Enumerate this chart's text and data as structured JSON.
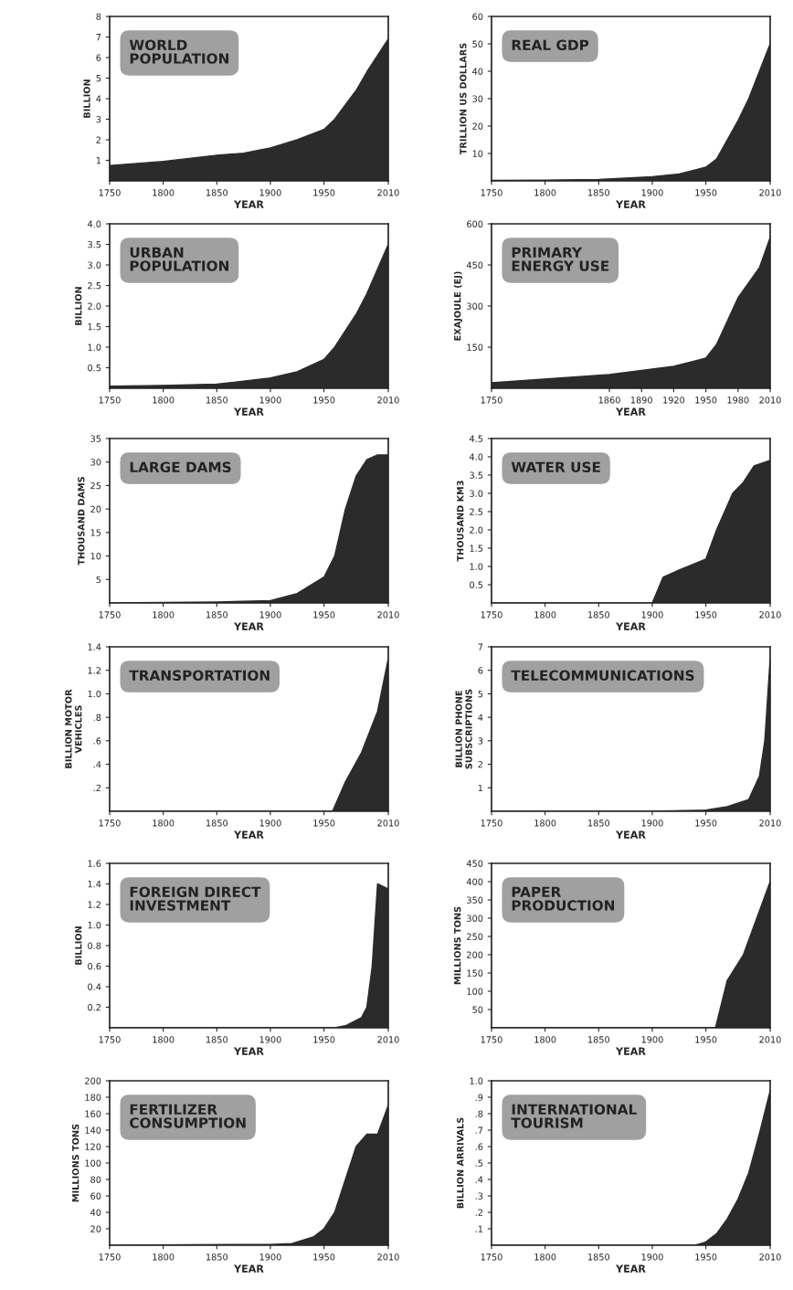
{
  "chart_data": [
    {
      "type": "area",
      "title": "WORLD\nPOPULATION",
      "xlabel": "YEAR",
      "ylabel": "BILLION",
      "x": [
        1750,
        1800,
        1850,
        1875,
        1900,
        1925,
        1950,
        1960,
        1970,
        1980,
        1990,
        2000,
        2010
      ],
      "series": [
        {
          "color": "#2b2b2b",
          "values": [
            0.75,
            0.95,
            1.25,
            1.35,
            1.6,
            2.0,
            2.5,
            3.0,
            3.7,
            4.4,
            5.3,
            6.1,
            6.9
          ]
        }
      ],
      "xlim": [
        1750,
        2010
      ],
      "xticks": [
        1750,
        1800,
        1850,
        1900,
        1950,
        2010
      ],
      "ylim": [
        0,
        8
      ],
      "yticks": [
        1,
        2,
        3,
        4,
        5,
        6,
        7,
        8
      ],
      "grid": false
    },
    {
      "type": "area",
      "title": "REAL GDP",
      "xlabel": "YEAR",
      "ylabel": "TRILLION US DOLLARS",
      "x": [
        1750,
        1800,
        1850,
        1900,
        1925,
        1950,
        1960,
        1970,
        1980,
        1990,
        2000,
        2010
      ],
      "series": [
        {
          "color": "#2b2b2b",
          "values": [
            0.2,
            0.3,
            0.5,
            1.5,
            2.5,
            5,
            8,
            15,
            22,
            30,
            40,
            50
          ]
        }
      ],
      "xlim": [
        1750,
        2010
      ],
      "xticks": [
        1750,
        1800,
        1850,
        1900,
        1950,
        2010
      ],
      "ylim": [
        0,
        60
      ],
      "yticks": [
        10,
        20,
        30,
        40,
        50,
        60
      ],
      "grid": false
    },
    {
      "type": "area",
      "title": "URBAN\nPOPULATION",
      "xlabel": "YEAR",
      "ylabel": "BILLION",
      "x": [
        1750,
        1800,
        1850,
        1900,
        1925,
        1950,
        1960,
        1970,
        1980,
        1990,
        2000,
        2010
      ],
      "series": [
        {
          "color": "#2b2b2b",
          "values": [
            0.05,
            0.07,
            0.1,
            0.25,
            0.4,
            0.7,
            1.0,
            1.4,
            1.8,
            2.3,
            2.9,
            3.5
          ]
        }
      ],
      "xlim": [
        1750,
        2010
      ],
      "xticks": [
        1750,
        1800,
        1850,
        1900,
        1950,
        2010
      ],
      "ylim": [
        0,
        4
      ],
      "yticks": [
        {
          "value": 0.5,
          "label": "0.5"
        },
        {
          "value": 1,
          "label": "1.0"
        },
        {
          "value": 1.5,
          "label": "1.5"
        },
        {
          "value": 2,
          "label": "2.0"
        },
        {
          "value": 2.5,
          "label": "2.5"
        },
        {
          "value": 3,
          "label": "3.0"
        },
        {
          "value": 3.5,
          "label": "3.5"
        },
        {
          "value": 4,
          "label": "4.0"
        }
      ],
      "grid": false
    },
    {
      "type": "area",
      "title": "PRIMARY\nENERGY USE",
      "xlabel": "YEAR",
      "ylabel": "EXAJOULE (EJ)",
      "x": [
        1750,
        1860,
        1920,
        1950,
        1960,
        1980,
        2000,
        2010
      ],
      "series": [
        {
          "color": "#2b2b2b",
          "values": [
            20,
            50,
            80,
            110,
            160,
            330,
            440,
            550
          ]
        }
      ],
      "xlim": [
        1750,
        2010
      ],
      "xticks": [
        1750,
        1860,
        1890,
        1920,
        1950,
        1980,
        2010
      ],
      "ylim": [
        0,
        600
      ],
      "yticks": [
        150,
        300,
        450,
        600
      ],
      "grid": false
    },
    {
      "type": "area",
      "title": "LARGE DAMS",
      "xlabel": "YEAR",
      "ylabel": "THOUSAND DAMS",
      "x": [
        1750,
        1850,
        1900,
        1925,
        1950,
        1960,
        1970,
        1980,
        1990,
        2000,
        2010
      ],
      "series": [
        {
          "color": "#2b2b2b",
          "values": [
            0,
            0.2,
            0.5,
            2,
            5.5,
            10,
            20,
            27,
            30.5,
            31.5,
            31.5
          ]
        }
      ],
      "xlim": [
        1750,
        2010
      ],
      "xticks": [
        1750,
        1800,
        1850,
        1900,
        1950,
        2010
      ],
      "ylim": [
        0,
        35
      ],
      "yticks": [
        5,
        10,
        15,
        20,
        25,
        30,
        35
      ],
      "grid": false
    },
    {
      "type": "area",
      "title": "WATER USE",
      "xlabel": "YEAR",
      "ylabel": "THOUSAND KM3",
      "x": [
        1750,
        1900,
        1910,
        1925,
        1950,
        1960,
        1975,
        1985,
        1995,
        2010
      ],
      "series": [
        {
          "color": "#2b2b2b",
          "values": [
            0,
            0,
            0.7,
            0.9,
            1.2,
            2.0,
            3.0,
            3.3,
            3.75,
            3.9
          ]
        }
      ],
      "xlim": [
        1750,
        2010
      ],
      "xticks": [
        1750,
        1800,
        1850,
        1900,
        1950,
        2010
      ],
      "ylim": [
        0,
        4.5
      ],
      "yticks": [
        0.5,
        {
          "value": 1,
          "label": "1.0"
        },
        1.5,
        {
          "value": 2,
          "label": "2.0"
        },
        2.5,
        {
          "value": 3,
          "label": "3.0"
        },
        3.5,
        {
          "value": 4,
          "label": "4.0"
        },
        4.5
      ],
      "grid": false
    },
    {
      "type": "area",
      "title": "TRANSPORTATION",
      "xlabel": "YEAR",
      "ylabel": "BILLION MOTOR\nVEHICLES",
      "x": [
        1750,
        1958,
        1970,
        1985,
        2000,
        2010
      ],
      "series": [
        {
          "color": "#2b2b2b",
          "values": [
            0,
            0,
            0.25,
            0.5,
            0.85,
            1.3
          ]
        }
      ],
      "xlim": [
        1750,
        2010
      ],
      "xticks": [
        1750,
        1800,
        1850,
        1900,
        1950,
        2010
      ],
      "ylim": [
        0,
        1.4
      ],
      "yticks": [
        {
          "value": 0.2,
          "label": ".2"
        },
        {
          "value": 0.4,
          "label": ".4"
        },
        {
          "value": 0.6,
          "label": ".6"
        },
        {
          "value": 0.8,
          "label": ".8"
        },
        {
          "value": 1,
          "label": "1.0"
        },
        1.2,
        1.4
      ],
      "grid": false
    },
    {
      "type": "area",
      "title": "TELECOMMUNICATIONS",
      "xlabel": "YEAR",
      "ylabel": "BILLION PHONE\nSUBSCRIPTIONS",
      "x": [
        1750,
        1900,
        1950,
        1970,
        1990,
        2000,
        2005,
        2010
      ],
      "series": [
        {
          "color": "#2b2b2b",
          "values": [
            0,
            0,
            0.05,
            0.2,
            0.5,
            1.5,
            3.0,
            6.5
          ]
        }
      ],
      "xlim": [
        1750,
        2010
      ],
      "xticks": [
        1750,
        1800,
        1850,
        1900,
        1950,
        2010
      ],
      "ylim": [
        0,
        7
      ],
      "yticks": [
        1,
        2,
        3,
        4,
        5,
        6,
        7
      ],
      "grid": false
    },
    {
      "type": "area",
      "title": "FOREIGN DIRECT\nINVESTMENT",
      "xlabel": "YEAR",
      "ylabel": "BILLION",
      "x": [
        1750,
        1960,
        1970,
        1985,
        1990,
        1995,
        2000,
        2010
      ],
      "series": [
        {
          "color": "#2b2b2b",
          "values": [
            0,
            0,
            0.02,
            0.1,
            0.2,
            0.6,
            1.4,
            1.35
          ]
        }
      ],
      "xlim": [
        1750,
        2010
      ],
      "xticks": [
        1750,
        1800,
        1850,
        1900,
        1950,
        2010
      ],
      "ylim": [
        0,
        1.6
      ],
      "yticks": [
        0.2,
        0.4,
        0.6,
        0.8,
        {
          "value": 1,
          "label": "1.0"
        },
        1.2,
        1.4,
        1.6
      ],
      "grid": false
    },
    {
      "type": "area",
      "title": "PAPER\nPRODUCTION",
      "xlabel": "YEAR",
      "ylabel": "MILLIONS TONS",
      "x": [
        1750,
        1959,
        1970,
        1985,
        2000,
        2010
      ],
      "series": [
        {
          "color": "#2b2b2b",
          "values": [
            0,
            0,
            130,
            200,
            320,
            400
          ]
        }
      ],
      "xlim": [
        1750,
        2010
      ],
      "xticks": [
        1750,
        1800,
        1850,
        1900,
        1950,
        2010
      ],
      "ylim": [
        0,
        450
      ],
      "yticks": [
        50,
        100,
        150,
        200,
        250,
        300,
        350,
        400,
        450
      ],
      "grid": false
    },
    {
      "type": "area",
      "title": "FERTILIZER\nCONSUMPTION",
      "xlabel": "YEAR",
      "ylabel": "MILLIONS TONS",
      "x": [
        1750,
        1900,
        1920,
        1940,
        1950,
        1960,
        1970,
        1980,
        1990,
        2000,
        2010
      ],
      "series": [
        {
          "color": "#2b2b2b",
          "values": [
            0,
            1,
            2,
            10,
            20,
            40,
            80,
            120,
            135,
            135,
            170
          ]
        }
      ],
      "xlim": [
        1750,
        2010
      ],
      "xticks": [
        1750,
        1800,
        1850,
        1900,
        1950,
        2010
      ],
      "ylim": [
        0,
        200
      ],
      "yticks": [
        20,
        40,
        60,
        80,
        100,
        120,
        140,
        160,
        180,
        200
      ],
      "grid": false
    },
    {
      "type": "area",
      "title": "INTERNATIONAL\nTOURISM",
      "xlabel": "YEAR",
      "ylabel": "BILLION ARRIVALS",
      "x": [
        1750,
        1940,
        1950,
        1960,
        1970,
        1980,
        1990,
        2000,
        2010
      ],
      "series": [
        {
          "color": "#2b2b2b",
          "values": [
            0,
            0,
            0.02,
            0.07,
            0.16,
            0.28,
            0.44,
            0.68,
            0.94
          ]
        }
      ],
      "xlim": [
        1750,
        2010
      ],
      "xticks": [
        1750,
        1800,
        1850,
        1900,
        1950,
        2010
      ],
      "ylim": [
        0,
        1.0
      ],
      "yticks": [
        {
          "value": 0.1,
          "label": ".1"
        },
        {
          "value": 0.2,
          "label": ".2"
        },
        {
          "value": 0.3,
          "label": ".3"
        },
        {
          "value": 0.4,
          "label": ".4"
        },
        {
          "value": 0.5,
          "label": ".5"
        },
        {
          "value": 0.6,
          "label": ".6"
        },
        {
          "value": 0.7,
          "label": ".7"
        },
        {
          "value": 0.8,
          "label": ".8"
        },
        {
          "value": 0.9,
          "label": ".9"
        },
        {
          "value": 1,
          "label": "1.0"
        }
      ],
      "grid": false
    }
  ]
}
